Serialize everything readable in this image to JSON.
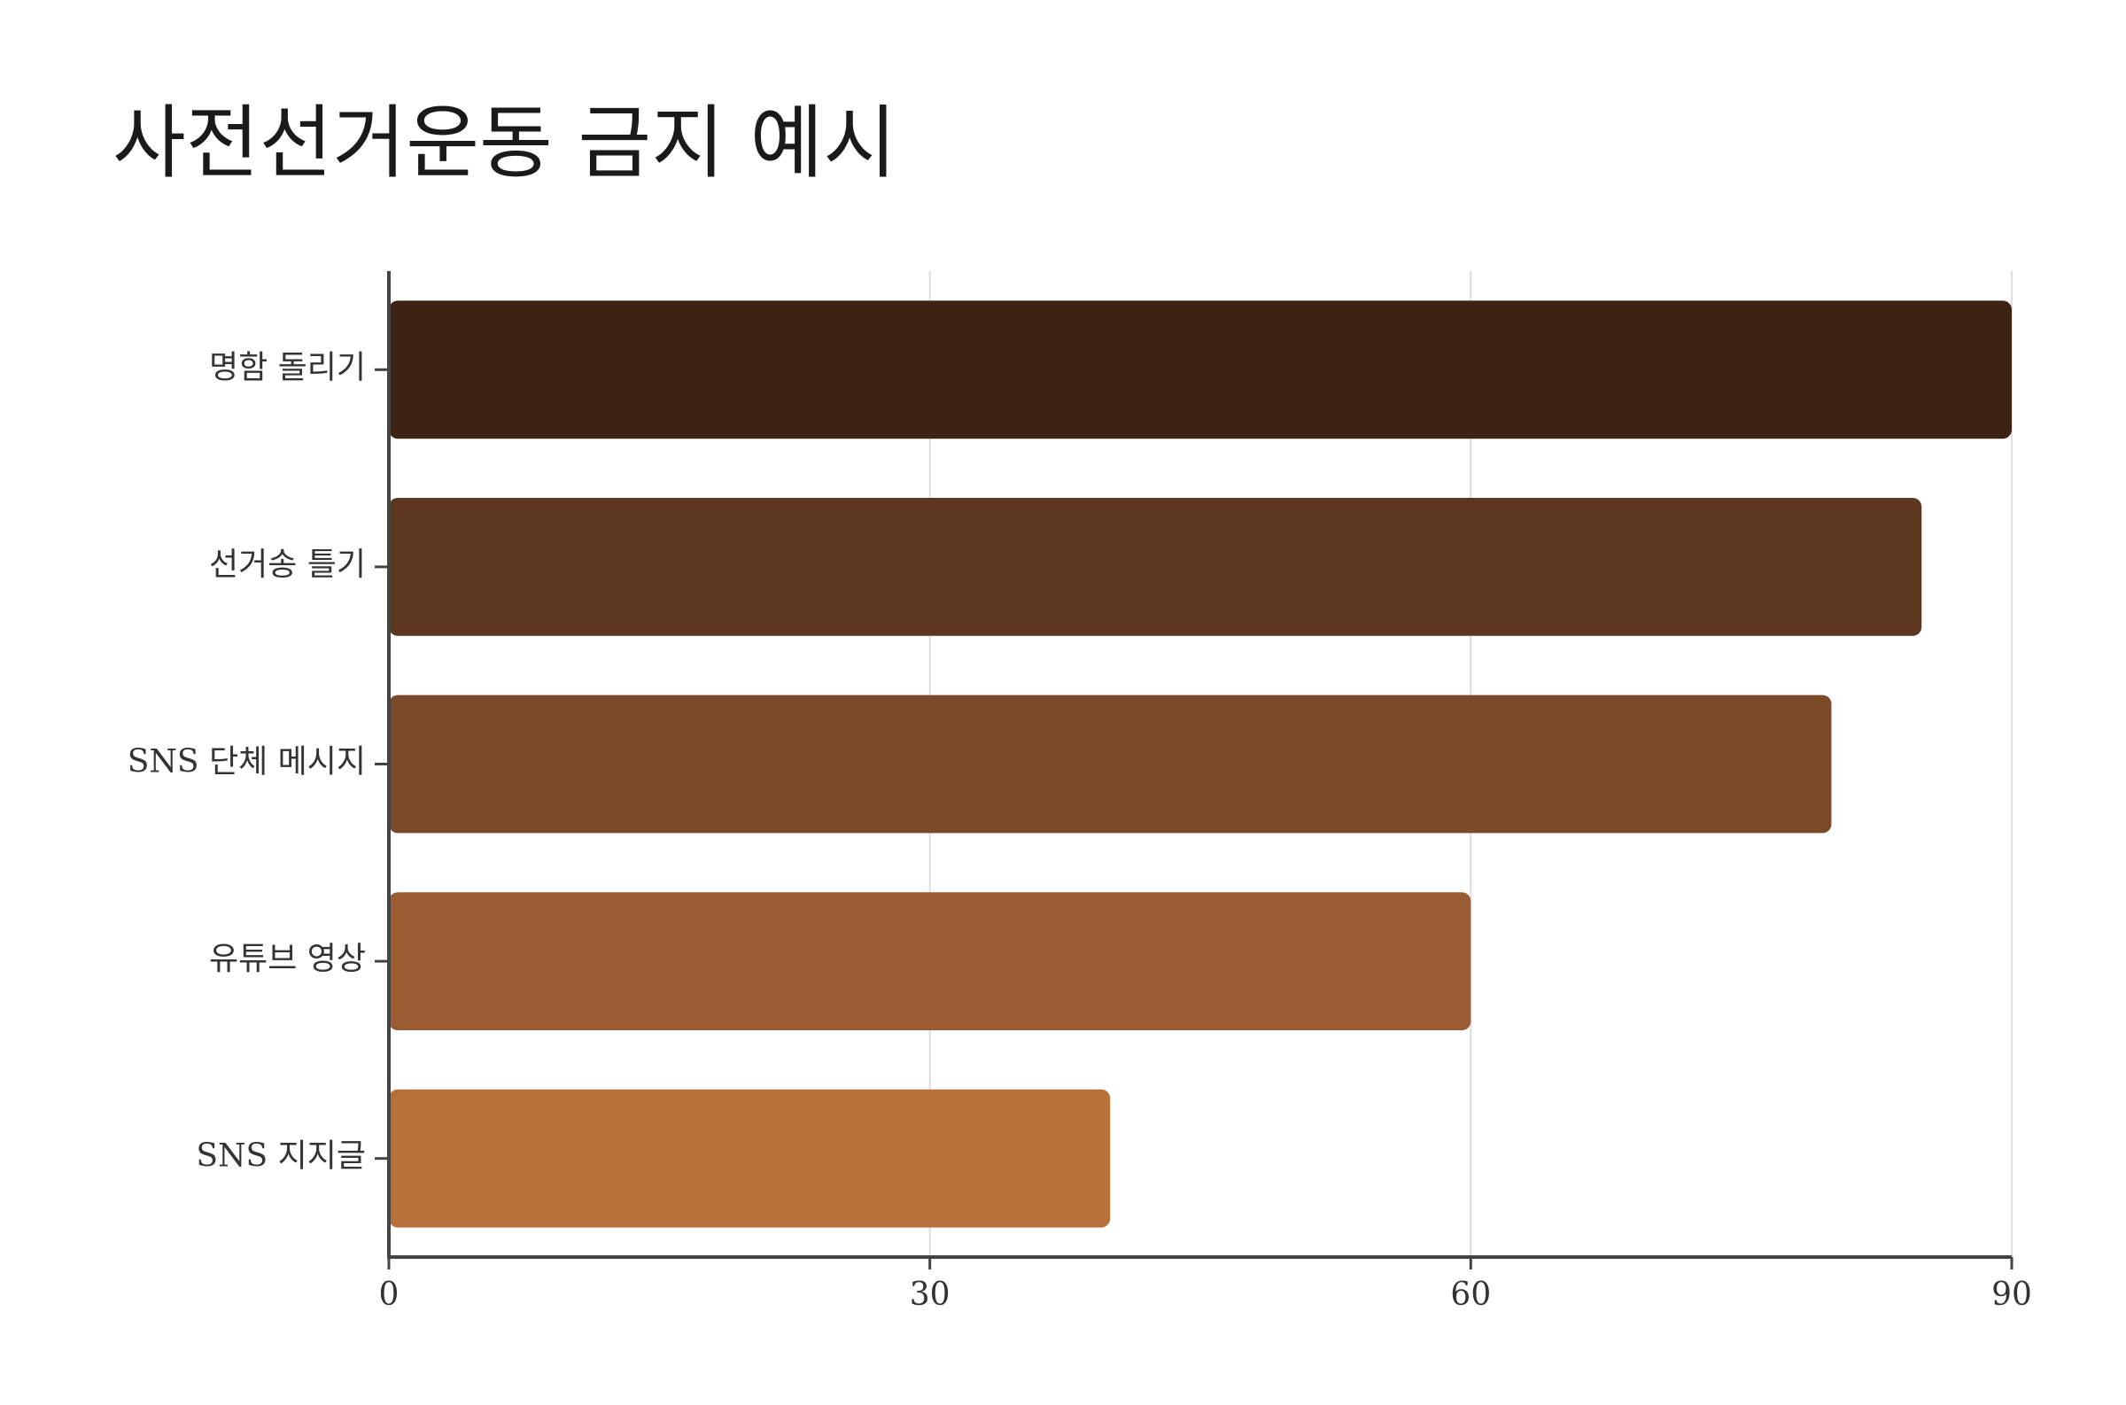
{
  "chart_data": {
    "type": "barh",
    "title": "사전선거운동 금지 예시",
    "categories": [
      "명함 돌리기",
      "선거송 틀기",
      "SNS 단체 메시지",
      "유튜브 영상",
      "SNS 지지글"
    ],
    "values": [
      90,
      85,
      80,
      60,
      40
    ],
    "colors": [
      "#3d2314",
      "#5c361f",
      "#7b4a28",
      "#9a5c32",
      "#b8703a"
    ],
    "xlim": [
      0,
      90
    ],
    "xticks": [
      0,
      30,
      60,
      90
    ],
    "grid": true
  }
}
